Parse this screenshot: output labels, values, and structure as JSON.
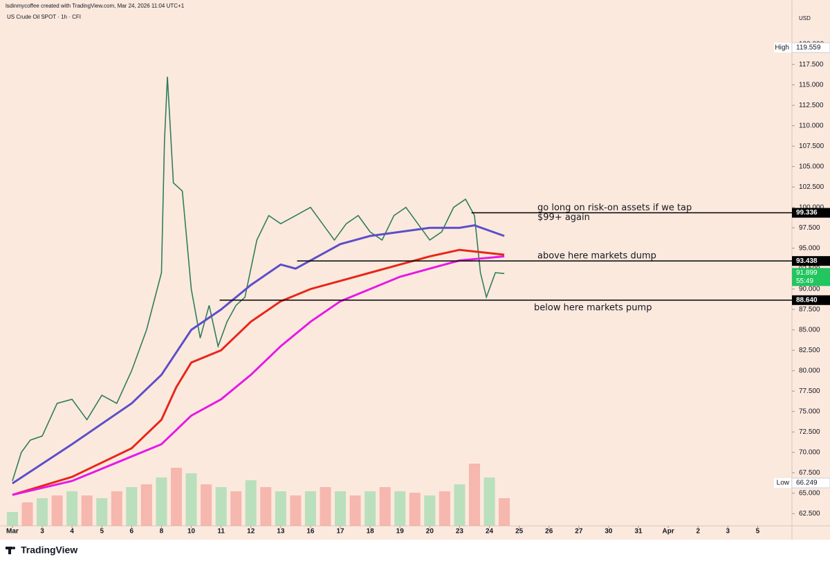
{
  "header": {
    "credit": "lsdinmycoffee created with TradingView.com, Mar 24, 2026 11:04 UTC+1",
    "symbol": "US Crude Oil SPOT · 1h · CFI",
    "currency": "USD",
    "logo": "TradingView"
  },
  "chart_data": {
    "type": "line",
    "xlim": [
      -0.3,
      26.15
    ],
    "ylim": [
      61,
      123.7
    ],
    "xticks": [
      {
        "value": 0,
        "label": "Mar"
      },
      {
        "value": 1,
        "label": "3"
      },
      {
        "value": 2,
        "label": "4"
      },
      {
        "value": 3,
        "label": "5"
      },
      {
        "value": 4,
        "label": "6"
      },
      {
        "value": 5,
        "label": "8"
      },
      {
        "value": 6,
        "label": "10"
      },
      {
        "value": 7,
        "label": "11"
      },
      {
        "value": 8,
        "label": "12"
      },
      {
        "value": 9,
        "label": "13"
      },
      {
        "value": 10,
        "label": "16"
      },
      {
        "value": 11,
        "label": "17"
      },
      {
        "value": 12,
        "label": "18"
      },
      {
        "value": 13,
        "label": "19"
      },
      {
        "value": 14,
        "label": "20"
      },
      {
        "value": 15,
        "label": "23"
      },
      {
        "value": 16,
        "label": "24"
      },
      {
        "value": 17,
        "label": "25"
      },
      {
        "value": 18,
        "label": "26"
      },
      {
        "value": 19,
        "label": "27"
      },
      {
        "value": 20,
        "label": "30"
      },
      {
        "value": 21,
        "label": "31"
      },
      {
        "value": 22,
        "label": "Apr"
      },
      {
        "value": 23,
        "label": "2"
      },
      {
        "value": 24,
        "label": "3"
      },
      {
        "value": 25,
        "label": "5"
      }
    ],
    "yticks": [
      {
        "value": 62.5,
        "label": "62.500"
      },
      {
        "value": 65,
        "label": "65.000"
      },
      {
        "value": 67.5,
        "label": "67.500"
      },
      {
        "value": 70,
        "label": "70.000"
      },
      {
        "value": 72.5,
        "label": "72.500"
      },
      {
        "value": 75,
        "label": "75.000"
      },
      {
        "value": 77.5,
        "label": "77.500"
      },
      {
        "value": 80,
        "label": "80.000"
      },
      {
        "value": 82.5,
        "label": "82.500"
      },
      {
        "value": 85,
        "label": "85.000"
      },
      {
        "value": 87.5,
        "label": "87.500"
      },
      {
        "value": 90,
        "label": "90.000"
      },
      {
        "value": 92.5,
        "label": "92.500"
      },
      {
        "value": 95,
        "label": "95.000"
      },
      {
        "value": 97.5,
        "label": "97.500"
      },
      {
        "value": 100,
        "label": "100.000"
      },
      {
        "value": 102.5,
        "label": "102.500"
      },
      {
        "value": 105,
        "label": "105.000"
      },
      {
        "value": 107.5,
        "label": "107.500"
      },
      {
        "value": 110,
        "label": "110.000"
      },
      {
        "value": 112.5,
        "label": "112.500"
      },
      {
        "value": 115,
        "label": "115.000"
      },
      {
        "value": 117.5,
        "label": "117.500"
      },
      {
        "value": 120,
        "label": "120.000"
      }
    ],
    "series": [
      {
        "color": "#2e7d5b",
        "x": [
          0,
          0.3,
          0.6,
          1,
          1.5,
          2,
          2.5,
          3,
          3.5,
          4,
          4.5,
          5,
          5.1,
          5.2,
          5.4,
          5.7,
          6,
          6.3,
          6.6,
          6.9,
          7.2,
          7.5,
          7.8,
          8.2,
          8.6,
          9,
          9.5,
          10,
          10.4,
          10.8,
          11.2,
          11.6,
          12,
          12.4,
          12.8,
          13.2,
          13.6,
          14,
          14.4,
          14.8,
          15.2,
          15.5,
          15.7,
          15.9,
          16.2,
          16.5
        ],
        "values": [
          66.5,
          70,
          71.5,
          72,
          76,
          76.5,
          74,
          77,
          76,
          80,
          85,
          92,
          108,
          116,
          103,
          102,
          90,
          84,
          88,
          83,
          86,
          88,
          89,
          96,
          99,
          98,
          99,
          100,
          98,
          96,
          98,
          99,
          97,
          96,
          99,
          100,
          98,
          96,
          97,
          100,
          101,
          99,
          92,
          89,
          92,
          91.9
        ]
      },
      {
        "color": "#5b4fc9",
        "x": [
          0,
          2,
          4,
          5,
          6,
          7,
          8,
          9,
          9.5,
          10,
          11,
          12,
          13,
          14,
          15,
          15.5,
          16.5
        ],
        "values": [
          66.2,
          71,
          76,
          79.5,
          85,
          87.5,
          90.5,
          93,
          92.5,
          93.5,
          95.5,
          96.5,
          97,
          97.5,
          97.5,
          97.8,
          96.5
        ]
      },
      {
        "color": "#e8261a",
        "x": [
          0,
          2,
          4,
          5,
          5.5,
          6,
          7,
          8,
          9,
          10,
          11,
          12,
          13,
          14,
          15,
          16.5
        ],
        "values": [
          64.8,
          67,
          70.5,
          74,
          78,
          81,
          82.5,
          86,
          88.5,
          90,
          91,
          92,
          93,
          94,
          94.8,
          94.2
        ]
      },
      {
        "color": "#e619e6",
        "x": [
          0,
          2,
          4,
          5,
          6,
          7,
          8,
          9,
          10,
          11,
          12,
          13,
          14,
          15,
          16.5
        ],
        "values": [
          64.8,
          66.5,
          69.5,
          71,
          74.5,
          76.5,
          79.5,
          83,
          86,
          88.5,
          90,
          91.5,
          92.5,
          93.5,
          94
        ]
      }
    ],
    "volume": {
      "ylim": [
        0,
        100
      ],
      "colors": [
        "#a8dcb4",
        "#f2aaa2"
      ],
      "x": [
        0,
        0.5,
        1,
        1.5,
        2,
        2.5,
        3,
        3.5,
        4,
        4.5,
        5,
        5.5,
        6,
        6.5,
        7,
        7.5,
        8,
        8.5,
        9,
        9.5,
        10,
        10.5,
        11,
        11.5,
        12,
        12.5,
        13,
        13.5,
        14,
        14.5,
        15,
        15.5,
        16,
        16.5
      ],
      "values": [
        10,
        17,
        20,
        22,
        25,
        22,
        20,
        25,
        28,
        30,
        35,
        42,
        38,
        30,
        28,
        25,
        33,
        28,
        25,
        22,
        25,
        28,
        25,
        22,
        25,
        28,
        25,
        24,
        22,
        25,
        30,
        45,
        35,
        20
      ]
    },
    "levels": [
      {
        "value": 99.336,
        "label": "99.336",
        "from": 15.4,
        "note": [
          "go long on risk-on assets if we tap",
          "$99+ again"
        ]
      },
      {
        "value": 93.438,
        "label": "93.438",
        "from": 9.55,
        "note": [
          "above here markets dump"
        ]
      },
      {
        "value": 88.64,
        "label": "88.640",
        "from": 6.95,
        "note": [
          "below here markets pump"
        ]
      }
    ],
    "last": {
      "value": 91.899,
      "label": "91.899",
      "countdown": "55:49",
      "color": "#22c55e"
    },
    "high": {
      "name": "High",
      "value": 119.559
    },
    "low": {
      "name": "Low",
      "value": 66.249
    }
  }
}
